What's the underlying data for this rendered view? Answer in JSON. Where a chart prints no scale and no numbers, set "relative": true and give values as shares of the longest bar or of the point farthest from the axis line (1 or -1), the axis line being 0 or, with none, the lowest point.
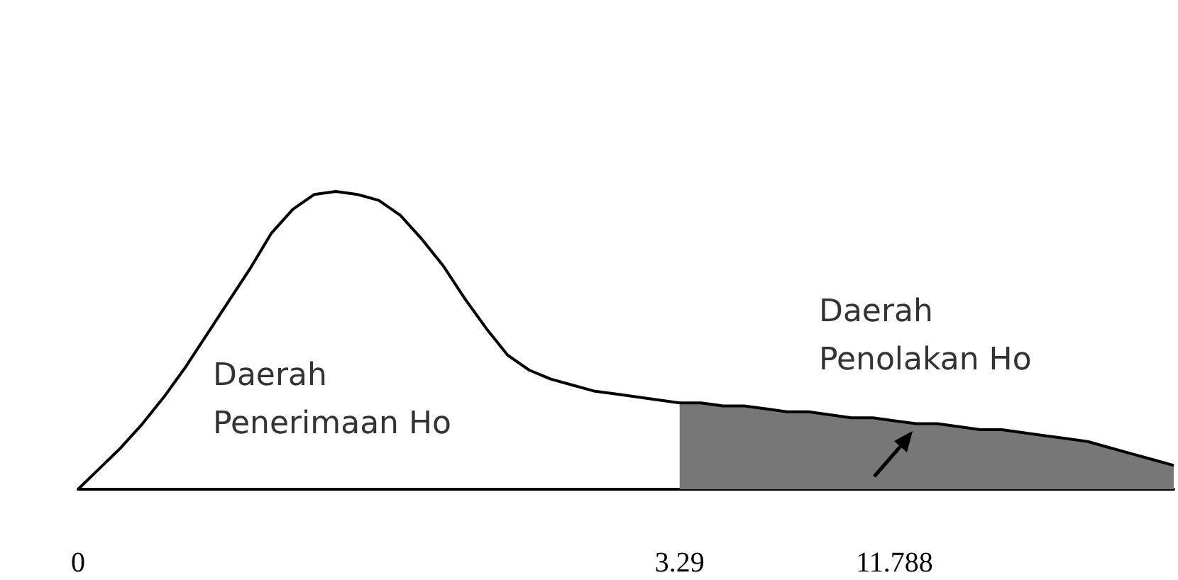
{
  "chart_data": {
    "type": "line",
    "relative": true,
    "categories": [
      "0",
      null,
      null,
      null,
      null,
      null,
      null,
      null,
      null,
      null,
      null,
      null,
      null,
      null,
      null,
      null,
      null,
      null,
      null,
      null,
      null,
      null,
      null,
      null,
      null,
      null,
      null,
      null,
      "3.29",
      null,
      null,
      null,
      null,
      null,
      null,
      null,
      null,
      null,
      "11.788",
      null,
      null,
      null,
      null,
      null,
      null,
      null,
      null,
      null,
      null,
      null,
      null,
      null
    ],
    "series": [
      {
        "color": "#000000",
        "values": [
          0,
          0.07,
          0.14,
          0.22,
          0.31,
          0.41,
          0.52,
          0.63,
          0.74,
          0.86,
          0.94,
          0.99,
          1,
          0.99,
          0.97,
          0.92,
          0.84,
          0.75,
          0.64,
          0.54,
          0.45,
          0.4,
          0.37,
          0.35,
          0.33,
          0.32,
          0.31,
          0.3,
          0.29,
          0.29,
          0.28,
          0.28,
          0.27,
          0.26,
          0.26,
          0.25,
          0.24,
          0.24,
          0.23,
          0.22,
          0.22,
          0.21,
          0.2,
          0.2,
          0.19,
          0.18,
          0.17,
          0.16,
          0.14,
          0.12,
          0.1,
          0.08
        ]
      },
      {
        "type": "area",
        "color": "#777777",
        "values": [
          null,
          null,
          null,
          null,
          null,
          null,
          null,
          null,
          null,
          null,
          null,
          null,
          null,
          null,
          null,
          null,
          null,
          null,
          null,
          null,
          null,
          null,
          null,
          null,
          null,
          null,
          null,
          null,
          0.29,
          0.29,
          0.28,
          0.28,
          0.27,
          0.26,
          0.26,
          0.25,
          0.24,
          0.24,
          0.23,
          0.22,
          0.22,
          0.21,
          0.2,
          0.2,
          0.19,
          0.18,
          0.17,
          0.16,
          0.14,
          0.12,
          0.1,
          0.08
        ]
      }
    ],
    "annotations": [
      "Daerah Penerimaan Ho",
      "Daerah Penolakan Ho"
    ],
    "grid": false,
    "marker": "none"
  }
}
